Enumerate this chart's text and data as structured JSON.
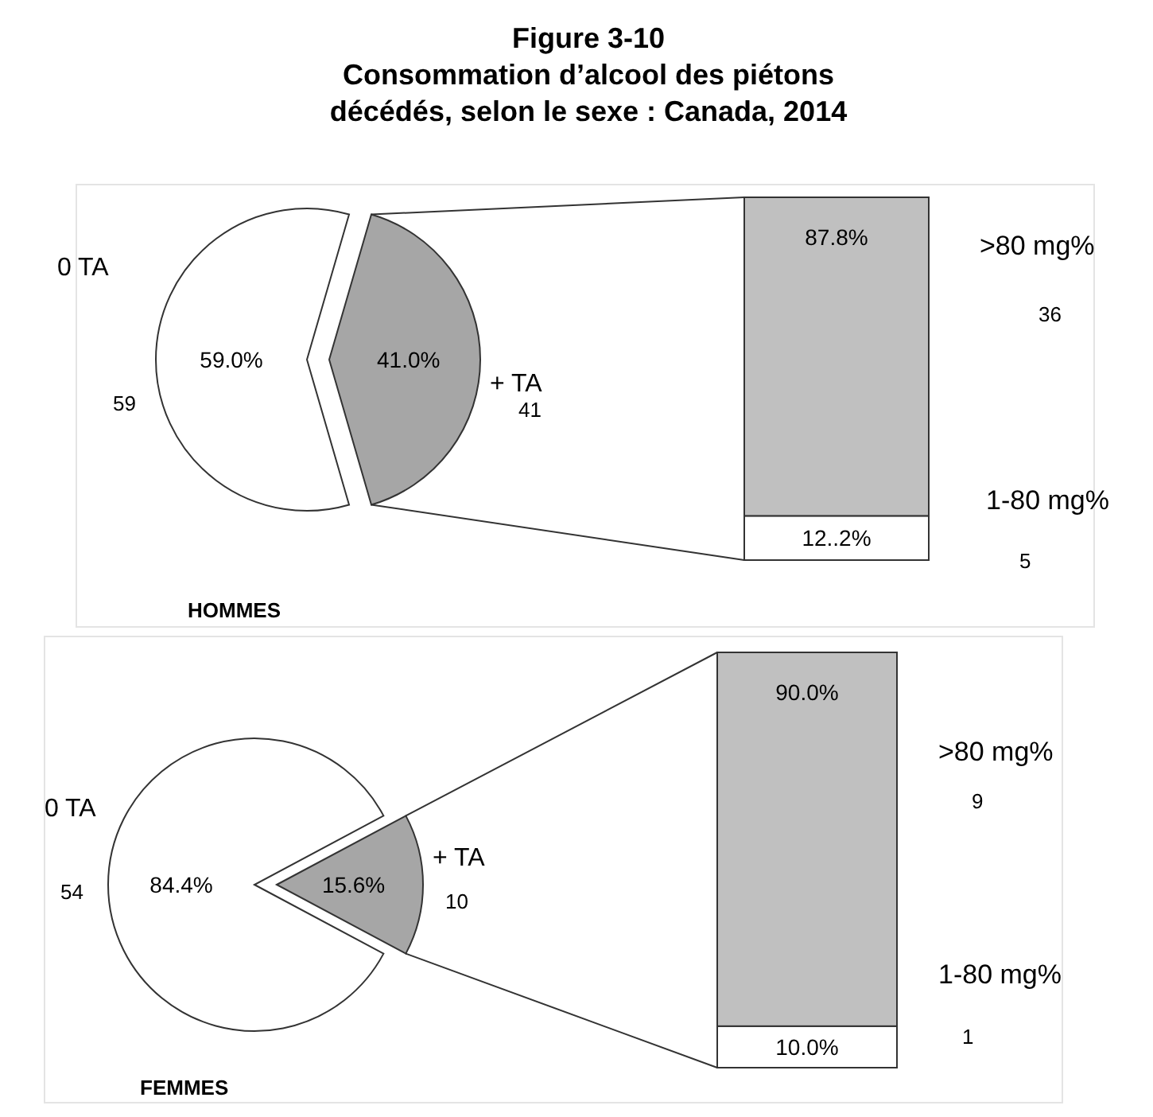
{
  "chart_data": [
    {
      "type": "pie",
      "title": "Figure 3-10\nConsommation d’alcool des piétons\ndécédés, selon le sexe : Canada, 2014",
      "xlabel": "HOMMES",
      "categories": [
        "0 TA",
        "+ TA"
      ],
      "values": [
        59.0,
        41.0
      ],
      "value_labels": [
        "59.0%",
        "41.0%"
      ],
      "annotations": [
        "59",
        "41"
      ],
      "colors": [
        "#ffffff",
        "#a6a6a6"
      ]
    },
    {
      "type": "bar",
      "stacked": true,
      "categories": [
        null
      ],
      "annotations": [
        "5",
        "36"
      ],
      "series": [
        {
          "name": "1-80 mg%",
          "color": "#ffffff",
          "values": [
            12.2
          ],
          "value_labels": [
            "12..2%"
          ]
        },
        {
          "name": ">80 mg%",
          "color": "#c0c0c0",
          "values": [
            87.8
          ],
          "value_labels": [
            "87.8%"
          ]
        }
      ]
    },
    {
      "type": "pie",
      "xlabel": "FEMMES",
      "categories": [
        "0 TA",
        "+ TA"
      ],
      "values": [
        84.4,
        15.6
      ],
      "value_labels": [
        "84.4%",
        "15.6%"
      ],
      "annotations": [
        "54",
        "10"
      ],
      "colors": [
        "#ffffff",
        "#a6a6a6"
      ]
    },
    {
      "type": "bar",
      "stacked": true,
      "categories": [
        null
      ],
      "annotations": [
        "1",
        "9"
      ],
      "series": [
        {
          "name": "1-80 mg%",
          "color": "#ffffff",
          "values": [
            10.0
          ],
          "value_labels": [
            "10.0%"
          ]
        },
        {
          "name": ">80 mg%",
          "color": "#c0c0c0",
          "values": [
            90.0
          ],
          "value_labels": [
            "90.0%"
          ]
        }
      ]
    }
  ]
}
